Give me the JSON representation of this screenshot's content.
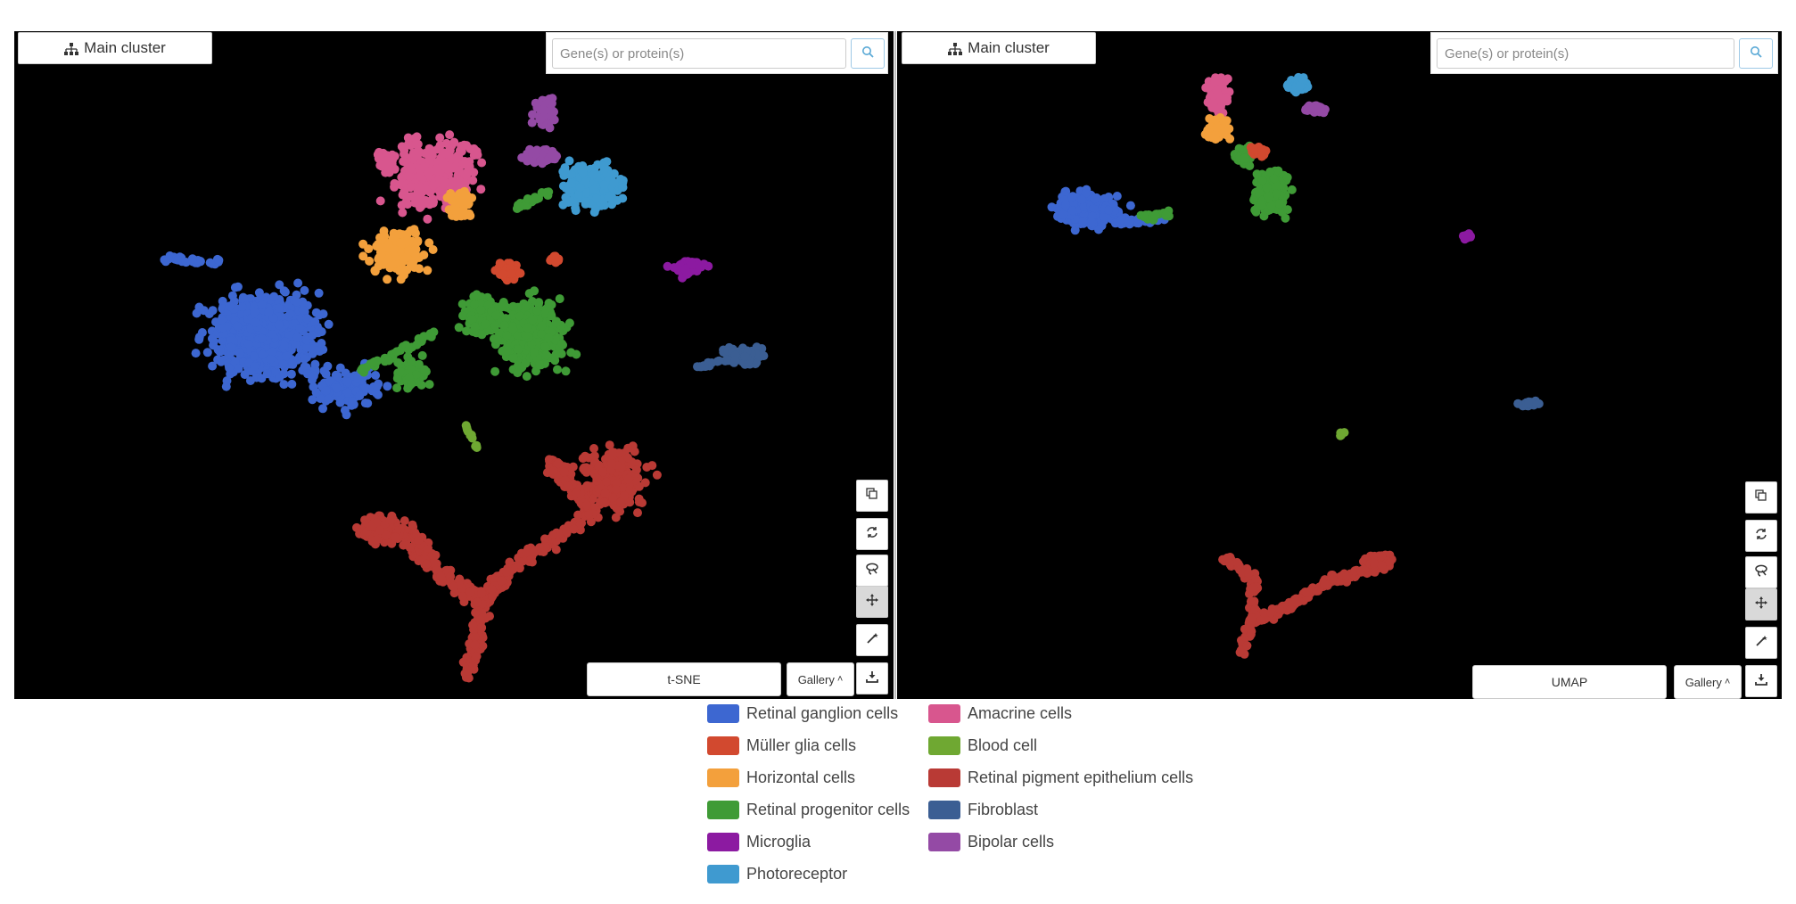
{
  "panels": [
    {
      "cluster_button_label": "Main cluster",
      "search_placeholder": "Gene(s) or protein(s)",
      "method_label": "t-SNE",
      "gallery_label": "Gallery"
    },
    {
      "cluster_button_label": "Main cluster",
      "search_placeholder": "Gene(s) or protein(s)",
      "method_label": "UMAP",
      "gallery_label": "Gallery"
    }
  ],
  "tools": [
    "copy-icon",
    "refresh-icon",
    "lasso-icon",
    "pan-icon",
    "magic-wand-icon",
    "download-icon"
  ],
  "legend": [
    {
      "label": "Retinal ganglion cells",
      "color": "#3d67d1"
    },
    {
      "label": "Müller glia cells",
      "color": "#d2492f"
    },
    {
      "label": "Horizontal cells",
      "color": "#f3a03c"
    },
    {
      "label": "Retinal progenitor cells",
      "color": "#3f9b36"
    },
    {
      "label": "Microglia",
      "color": "#8c1aa1"
    },
    {
      "label": "Photoreceptor",
      "color": "#3f9ad0"
    },
    {
      "label": "Amacrine cells",
      "color": "#d8568e"
    },
    {
      "label": "Blood cell",
      "color": "#6fa832"
    },
    {
      "label": "Retinal pigment epithelium cells",
      "color": "#b93a35"
    },
    {
      "label": "Fibroblast",
      "color": "#3b5e93"
    },
    {
      "label": "Bipolar cells",
      "color": "#944aa5"
    }
  ]
}
